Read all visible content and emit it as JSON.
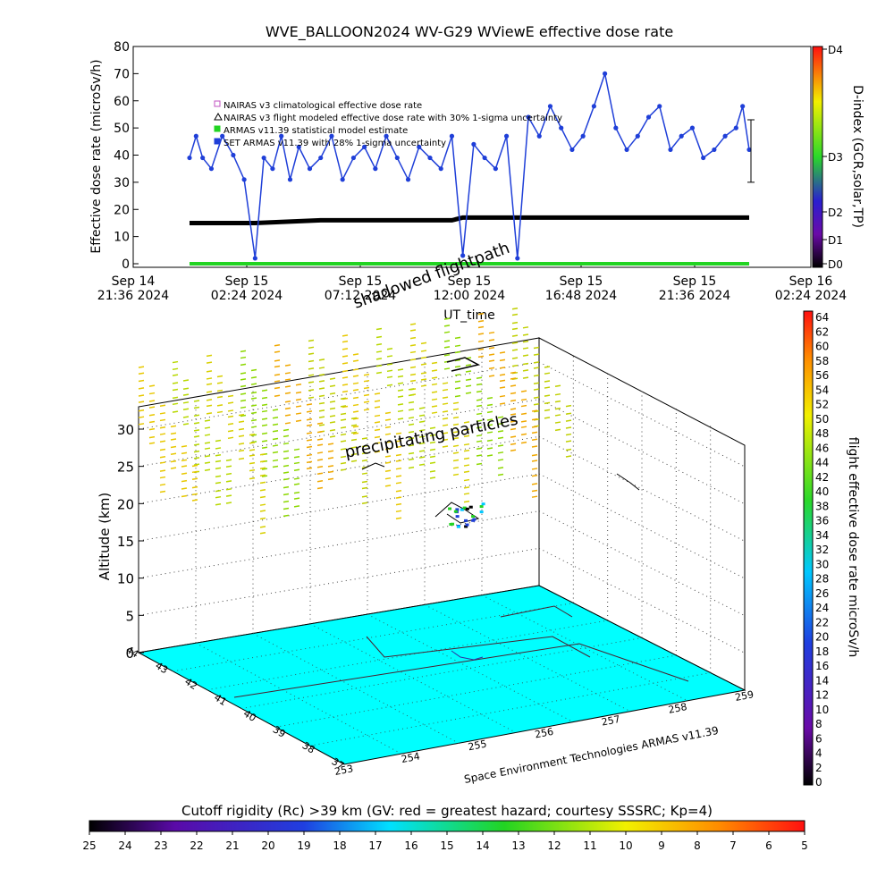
{
  "title": "WVE_BALLOON2024 WV-G29 WViewE effective dose rate",
  "colors": {
    "bg": "#ffffff",
    "series_flight": "#1f3fd8",
    "series_climatological": "#000000",
    "series_statistical": "#22d422",
    "floor": "#00ffff"
  },
  "chart_data": [
    {
      "type": "line",
      "title": "WVE_BALLOON2024 WV-G29 WViewE effective dose rate",
      "xlabel": "UT_time",
      "ylabel": "Effective dose rate (microSv/h)",
      "ylim": [
        0,
        80
      ],
      "y_ticks": [
        "0",
        "10",
        "20",
        "30",
        "40",
        "50",
        "60",
        "70",
        "80"
      ],
      "x_ticks": [
        {
          "line1": "Sep 14",
          "line2": "21:36 2024"
        },
        {
          "line1": "Sep 15",
          "line2": "02:24 2024"
        },
        {
          "line1": "Sep 15",
          "line2": "07:12 2024"
        },
        {
          "line1": "Sep 15",
          "line2": "12:00 2024"
        },
        {
          "line1": "Sep 15",
          "line2": "16:48 2024"
        },
        {
          "line1": "Sep 15",
          "line2": "21:36 2024"
        },
        {
          "line1": "Sep 16",
          "line2": "02:24 2024"
        }
      ],
      "legend": [
        "NAIRAS v3 climatological effective dose rate",
        "NAIRAS v3 flight modeled effective dose rate with 30% 1-sigma uncertainty",
        "ARMAS v11.39 statistical model estimate",
        "SET ARMAS v11.39 with 28% 1-sigma uncertainty"
      ],
      "right_axis": {
        "label": "D-index (GCR,solar,TP)",
        "ticks": [
          "D0",
          "D1",
          "D2",
          "D3",
          "D4"
        ]
      },
      "annotations": [
        "shadowed flightpath"
      ],
      "series": [
        {
          "name": "SET ARMAS v11.39 with 28% 1-sigma uncertainty",
          "x_hours": [
            0.0,
            0.3,
            0.6,
            1.0,
            1.5,
            2.0,
            2.5,
            3.0,
            3.4,
            3.8,
            4.2,
            4.6,
            5.0,
            5.5,
            6.0,
            6.5,
            7.0,
            7.5,
            8.0,
            8.5,
            9.0,
            9.5,
            10.0,
            10.5,
            11.0,
            11.5,
            12.0,
            12.5,
            13.0,
            13.5,
            14.0,
            14.5,
            15.0,
            15.5,
            16.0,
            16.5,
            17.0,
            17.5,
            18.0,
            18.5,
            19.0,
            19.5,
            20.0,
            20.5,
            21.0,
            21.5,
            22.0,
            22.5,
            23.0,
            23.5,
            24.0,
            24.5,
            25.0,
            25.3,
            25.6
          ],
          "values": [
            39,
            47,
            39,
            35,
            47,
            40,
            31,
            2,
            39,
            35,
            47,
            31,
            43,
            35,
            39,
            47,
            31,
            39,
            43,
            35,
            47,
            39,
            31,
            43,
            39,
            35,
            47,
            3,
            44,
            39,
            35,
            47,
            2,
            54,
            47,
            58,
            50,
            42,
            47,
            58,
            70,
            50,
            42,
            47,
            54,
            58,
            42,
            47,
            50,
            39,
            42,
            47,
            50,
            58,
            42
          ]
        },
        {
          "name": "NAIRAS v3 climatological effective dose rate",
          "x_hours": [
            0.0,
            3.0,
            6.0,
            9.0,
            12.0,
            12.5,
            15.0,
            18.0,
            21.0,
            24.0,
            25.6
          ],
          "values": [
            15,
            15,
            16,
            16,
            16,
            17,
            17,
            17,
            17,
            17,
            17
          ]
        },
        {
          "name": "ARMAS v11.39 statistical model estimate",
          "x_hours": [
            0.0,
            6.0,
            12.0,
            18.0,
            25.6
          ],
          "values": [
            0,
            0,
            0,
            0,
            0
          ]
        }
      ]
    },
    {
      "type": "scatter",
      "title": "",
      "xlabel": "",
      "ylabel": "Altitude (km)",
      "z_ticks": [
        "0",
        "5",
        "10",
        "15",
        "20",
        "25",
        "30"
      ],
      "lat_ticks": [
        "37",
        "38",
        "39",
        "40",
        "41",
        "42",
        "43",
        "44"
      ],
      "lon_ticks": [
        "253",
        "254",
        "255",
        "256",
        "257",
        "258",
        "259"
      ],
      "right_colorbar": {
        "label": "flight effective dose rate microSv/h",
        "ticks": [
          "0",
          "2",
          "4",
          "6",
          "8",
          "10",
          "12",
          "14",
          "16",
          "18",
          "20",
          "22",
          "24",
          "26",
          "28",
          "30",
          "32",
          "34",
          "36",
          "38",
          "40",
          "42",
          "44",
          "46",
          "48",
          "50",
          "52",
          "54",
          "56",
          "58",
          "60",
          "62",
          "64"
        ]
      },
      "annotations": [
        "precipitating particles"
      ],
      "credit": "Space Environment Technologies ARMAS v11.39"
    }
  ],
  "bottom_colorbar": {
    "title": "Cutoff rigidity (Rc) >39 km (GV: red = greatest hazard; courtesy SSSRC; Kp=4)",
    "ticks": [
      "25",
      "24",
      "23",
      "22",
      "21",
      "20",
      "19",
      "18",
      "17",
      "16",
      "15",
      "14",
      "13",
      "12",
      "11",
      "10",
      "9",
      "8",
      "7",
      "6",
      "5"
    ]
  }
}
